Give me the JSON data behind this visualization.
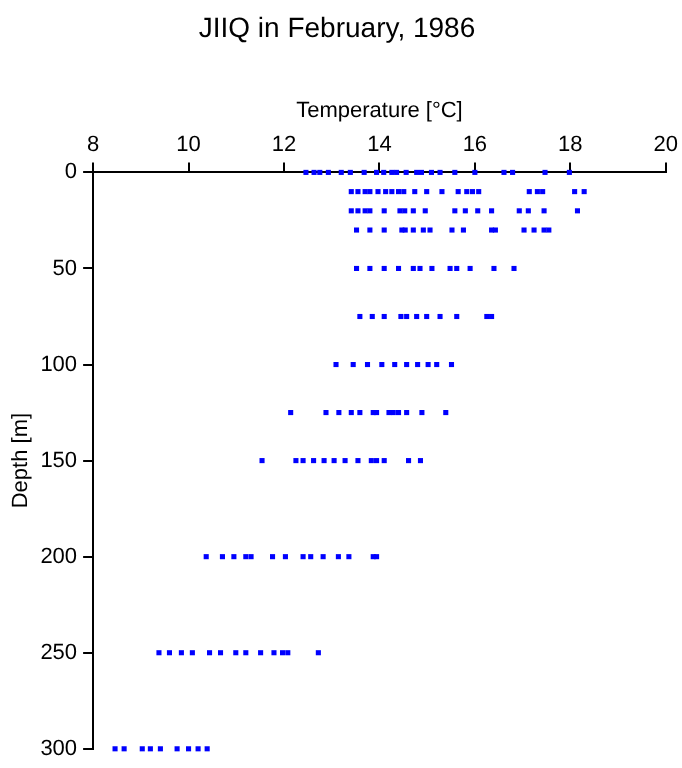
{
  "chart_data": {
    "type": "scatter",
    "title": "JIIQ in February, 1986",
    "xlabel": "Temperature [°C]",
    "ylabel": "Depth [m]",
    "xlim": [
      8,
      20
    ],
    "xticks": [
      8,
      10,
      12,
      14,
      16,
      18,
      20
    ],
    "ylim": [
      300,
      0
    ],
    "yticks": [
      0,
      50,
      100,
      150,
      200,
      250,
      300
    ],
    "grid": false,
    "legend": false,
    "marker": "square",
    "series": [
      {
        "color": "#0000ff",
        "x": [
          12.46,
          12.63,
          12.75,
          12.93,
          13.2,
          13.39,
          13.68,
          13.94,
          14.09,
          14.26,
          14.36,
          14.56,
          14.78,
          14.88,
          15.09,
          15.27,
          15.58,
          16.0,
          16.61,
          16.79,
          17.47,
          17.98,
          13.41,
          13.55,
          13.7,
          13.8,
          13.97,
          14.13,
          14.26,
          14.4,
          14.51,
          14.74,
          14.99,
          15.31,
          15.65,
          15.83,
          15.95,
          16.08,
          17.14,
          17.31,
          17.42,
          18.09,
          18.29,
          13.41,
          13.55,
          13.7,
          13.8,
          14.1,
          14.43,
          14.53,
          14.71,
          14.96,
          15.58,
          15.8,
          16.06,
          16.35,
          16.93,
          17.12,
          17.45,
          18.15,
          13.52,
          13.8,
          14.1,
          14.47,
          14.54,
          14.71,
          14.92,
          15.06,
          15.52,
          15.76,
          16.35,
          16.43,
          17.03,
          17.24,
          17.45,
          17.55,
          13.52,
          13.8,
          14.1,
          14.4,
          14.71,
          14.85,
          15.1,
          15.48,
          15.62,
          15.9,
          16.4,
          16.82,
          13.59,
          13.85,
          14.1,
          14.45,
          14.57,
          14.78,
          14.99,
          15.27,
          15.62,
          16.25,
          16.35,
          13.09,
          13.45,
          13.75,
          14.05,
          14.32,
          14.57,
          14.8,
          15.02,
          15.2,
          15.51,
          12.14,
          12.88,
          13.15,
          13.41,
          13.59,
          13.87,
          13.94,
          14.2,
          14.29,
          14.4,
          14.57,
          14.89,
          15.39,
          11.54,
          12.25,
          12.4,
          12.62,
          12.84,
          13.05,
          13.28,
          13.55,
          13.83,
          13.94,
          14.1,
          14.61,
          14.86,
          10.37,
          10.71,
          10.95,
          11.2,
          11.31,
          11.76,
          12.03,
          12.4,
          12.56,
          12.82,
          13.14,
          13.36,
          13.87,
          13.94,
          9.38,
          9.6,
          9.85,
          10.08,
          10.44,
          10.67,
          10.99,
          11.2,
          11.51,
          11.79,
          11.97,
          12.08,
          12.72,
          8.46,
          8.65,
          9.03,
          9.2,
          9.41,
          9.76,
          10.0,
          10.2,
          10.39
        ],
        "values": [
          0,
          0,
          0,
          0,
          0,
          0,
          0,
          0,
          0,
          0,
          0,
          0,
          0,
          0,
          0,
          0,
          0,
          0,
          0,
          0,
          0,
          0,
          10,
          10,
          10,
          10,
          10,
          10,
          10,
          10,
          10,
          10,
          10,
          10,
          10,
          10,
          10,
          10,
          10,
          10,
          10,
          10,
          10,
          20,
          20,
          20,
          20,
          20,
          20,
          20,
          20,
          20,
          20,
          20,
          20,
          20,
          20,
          20,
          20,
          20,
          30,
          30,
          30,
          30,
          30,
          30,
          30,
          30,
          30,
          30,
          30,
          30,
          30,
          30,
          30,
          30,
          50,
          50,
          50,
          50,
          50,
          50,
          50,
          50,
          50,
          50,
          50,
          50,
          75,
          75,
          75,
          75,
          75,
          75,
          75,
          75,
          75,
          75,
          75,
          100,
          100,
          100,
          100,
          100,
          100,
          100,
          100,
          100,
          100,
          125,
          125,
          125,
          125,
          125,
          125,
          125,
          125,
          125,
          125,
          125,
          125,
          125,
          150,
          150,
          150,
          150,
          150,
          150,
          150,
          150,
          150,
          150,
          150,
          150,
          150,
          200,
          200,
          200,
          200,
          200,
          200,
          200,
          200,
          200,
          200,
          200,
          200,
          200,
          200,
          250,
          250,
          250,
          250,
          250,
          250,
          250,
          250,
          250,
          250,
          250,
          250,
          250,
          300,
          300,
          300,
          300,
          300,
          300,
          300,
          300,
          300
        ]
      }
    ]
  }
}
